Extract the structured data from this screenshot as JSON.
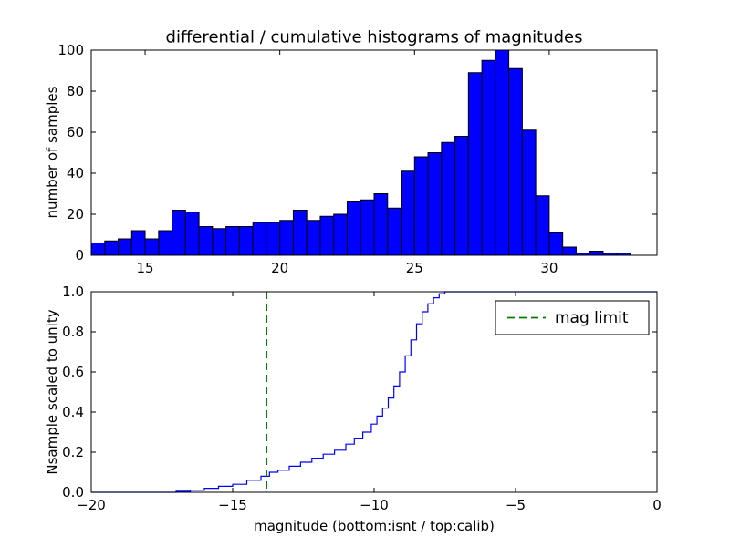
{
  "figure": {
    "title": "differential / cumulative histograms of magnitudes",
    "background": "#ffffff",
    "frame_color": "#000000"
  },
  "chart_data": [
    {
      "type": "bar",
      "name": "differential-histogram",
      "ylabel": "number of samples",
      "bar_fill": "#0000ff",
      "bar_edge": "#000000",
      "xlim": [
        13,
        34
      ],
      "ylim": [
        0,
        100
      ],
      "xtick_vals": [
        15,
        20,
        25,
        30
      ],
      "xtick_labels": [
        "15",
        "20",
        "25",
        "30"
      ],
      "ytick_vals": [
        0,
        20,
        40,
        60,
        80,
        100
      ],
      "ytick_labels": [
        "0",
        "20",
        "40",
        "60",
        "80",
        "100"
      ],
      "bin_start": 13,
      "bin_width": 0.5,
      "values": [
        6,
        7,
        8,
        12,
        8,
        12,
        22,
        21,
        14,
        13,
        14,
        14,
        16,
        16,
        17,
        22,
        17,
        19,
        20,
        26,
        27,
        30,
        23,
        41,
        48,
        50,
        55,
        58,
        89,
        95,
        100,
        91,
        61,
        29,
        11,
        4,
        1,
        2,
        1,
        1
      ],
      "grid": false
    },
    {
      "type": "line",
      "name": "cumulative-histogram",
      "xlabel": "magnitude (bottom:isnt / top:calib)",
      "ylabel": "Nsample scaled to unity",
      "line_color": "#0000ff",
      "xlim": [
        -20,
        0
      ],
      "ylim": [
        0,
        1
      ],
      "xtick_vals": [
        -20,
        -15,
        -10,
        -5,
        0
      ],
      "xtick_labels": [
        "−20",
        "−15",
        "−10",
        "−5",
        "0"
      ],
      "ytick_vals": [
        0,
        0.2,
        0.4,
        0.6,
        0.8,
        1.0
      ],
      "ytick_labels": [
        "0.0",
        "0.2",
        "0.4",
        "0.6",
        "0.8",
        "1.0"
      ],
      "step_points": [
        [
          -20,
          0
        ],
        [
          -17,
          0.005
        ],
        [
          -16.5,
          0.01
        ],
        [
          -16,
          0.02
        ],
        [
          -15.5,
          0.03
        ],
        [
          -15,
          0.04
        ],
        [
          -14.5,
          0.06
        ],
        [
          -14,
          0.08
        ],
        [
          -13.7,
          0.1
        ],
        [
          -13.4,
          0.11
        ],
        [
          -13,
          0.13
        ],
        [
          -12.6,
          0.15
        ],
        [
          -12.2,
          0.17
        ],
        [
          -11.8,
          0.19
        ],
        [
          -11.4,
          0.21
        ],
        [
          -11,
          0.24
        ],
        [
          -10.7,
          0.27
        ],
        [
          -10.4,
          0.3
        ],
        [
          -10.1,
          0.34
        ],
        [
          -9.9,
          0.38
        ],
        [
          -9.7,
          0.42
        ],
        [
          -9.5,
          0.47
        ],
        [
          -9.3,
          0.53
        ],
        [
          -9.1,
          0.6
        ],
        [
          -8.9,
          0.68
        ],
        [
          -8.7,
          0.76
        ],
        [
          -8.5,
          0.84
        ],
        [
          -8.3,
          0.9
        ],
        [
          -8.1,
          0.94
        ],
        [
          -7.9,
          0.97
        ],
        [
          -7.7,
          0.99
        ],
        [
          -7.5,
          1.0
        ],
        [
          0,
          1.0
        ]
      ],
      "vline": {
        "x": -13.8,
        "color": "#008000",
        "dash": "dashed"
      },
      "legend": {
        "position": "upper right",
        "entries": [
          {
            "label": "mag limit",
            "color": "#008000",
            "dash": "dashed"
          }
        ]
      },
      "grid": false
    }
  ]
}
